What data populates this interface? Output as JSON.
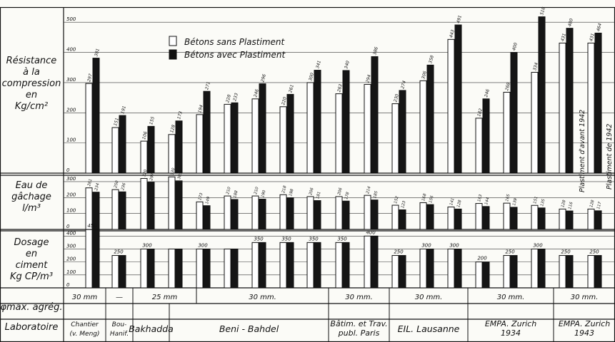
{
  "legend": {
    "white": "Bétons sans Plastiment",
    "black": "Bétons avec Plastiment"
  },
  "row_labels": {
    "resistance": [
      "Résistance",
      "à la",
      "compression",
      "en",
      "Kg/cm²"
    ],
    "eau": [
      "Eau de",
      "gâchage",
      "l/m³"
    ],
    "dosage": [
      "Dosage",
      "en",
      "ciment",
      "Kg CP/m³"
    ],
    "agregat": "φmax. agrég.",
    "laboratoire": "Laboratoire"
  },
  "annotations": {
    "plastiment_avant": "Plastiment d'avant 1942",
    "plastiment_de": "Plastiment de 1942"
  },
  "chart_data": [
    {
      "type": "bar",
      "title": "Résistance à la compression",
      "ylabel": "Kg/cm²",
      "yticks": [
        0,
        100,
        200,
        300,
        400,
        500
      ],
      "ylim": [
        0,
        550
      ],
      "series": [
        {
          "name": "Bétons sans Plastiment",
          "values": [
            297,
            151,
            106,
            128,
            194,
            228,
            246,
            220,
            300,
            263,
            294,
            230,
            306,
            443,
            182,
            268,
            334,
            431,
            431
          ]
        },
        {
          "name": "Bétons avec Plastiment",
          "values": [
            381,
            191,
            155,
            173,
            271,
            233,
            296,
            261,
            341,
            340,
            386,
            274,
            358,
            491,
            246,
            400,
            518,
            480,
            464
          ]
        }
      ],
      "value_labels": {
        "white": [
          "297",
          "151",
          "106",
          "128",
          "194",
          "228",
          "246",
          "220",
          "300",
          "263",
          "294",
          "230",
          "306",
          "443",
          "182",
          "268",
          "334",
          "431",
          "431"
        ],
        "black": [
          "381",
          "191",
          "155",
          "173",
          "271",
          "233",
          "296",
          "261",
          "341",
          "340",
          "386",
          "274",
          "358",
          "491",
          "246",
          "400",
          "518",
          "480",
          "464"
        ]
      }
    },
    {
      "type": "bar",
      "title": "Eau de gâchage",
      "ylabel": "l/m³",
      "yticks": [
        0,
        100,
        200,
        300
      ],
      "ylim": [
        0,
        340
      ],
      "series": [
        {
          "name": "Bétons sans Plastiment",
          "values": [
            261,
            250,
            320,
            330,
            173,
            210,
            210,
            218,
            206,
            206,
            214,
            152,
            168,
            141,
            163,
            165,
            151,
            128,
            128
          ]
        },
        {
          "name": "Bétons avec Plastiment",
          "values": [
            234,
            236,
            297,
            305,
            149,
            188,
            190,
            198,
            181,
            178,
            185,
            123,
            156,
            128,
            144,
            139,
            135,
            116,
            117
          ]
        }
      ],
      "value_labels": {
        "white": [
          "261",
          "250",
          "320",
          "330",
          "173",
          "210",
          "210",
          "218",
          "206",
          "206",
          "214",
          "152",
          "168",
          "141",
          "163",
          "165",
          "151",
          "128",
          "128"
        ],
        "black": [
          "234",
          "236",
          "297",
          "305",
          "149",
          "188",
          "190",
          "198",
          "181",
          "178",
          "185",
          "123",
          "156",
          "128",
          "144",
          "139",
          "135",
          "116",
          "117"
        ]
      }
    },
    {
      "type": "bar",
      "title": "Dosage en ciment",
      "ylabel": "Kg CP/m³",
      "yticks": [
        0,
        100,
        200,
        300,
        400
      ],
      "ylim": [
        0,
        440
      ],
      "values": [
        450,
        250,
        300,
        300,
        300,
        300,
        350,
        350,
        350,
        350,
        400,
        250,
        300,
        300,
        200,
        250,
        300,
        250,
        250
      ],
      "value_labels": [
        "450",
        "250",
        "300",
        "",
        "300",
        "",
        "350",
        "350",
        "350",
        "350",
        "400",
        "250",
        "300",
        "300",
        "200",
        "250",
        "300",
        "250",
        "250"
      ]
    }
  ],
  "agregat_cells": [
    "30 mm",
    "—",
    "25 mm",
    "30 mm.",
    "30 mm.",
    "30 mm.",
    "30 mm.",
    "30 mm."
  ],
  "labo_cells": [
    [
      "Chantier",
      "(v. Meng)"
    ],
    [
      "Bou-",
      "Hanif."
    ],
    [
      "Bakhadda"
    ],
    [
      "Beni - Bahdel"
    ],
    [
      "Bâtim. et Trav.",
      "publ. Paris"
    ],
    [
      "EIL. Lausanne"
    ],
    [
      "EMPA. Zurich",
      "1934"
    ],
    [
      "EMPA. Zurich",
      "1943"
    ]
  ]
}
